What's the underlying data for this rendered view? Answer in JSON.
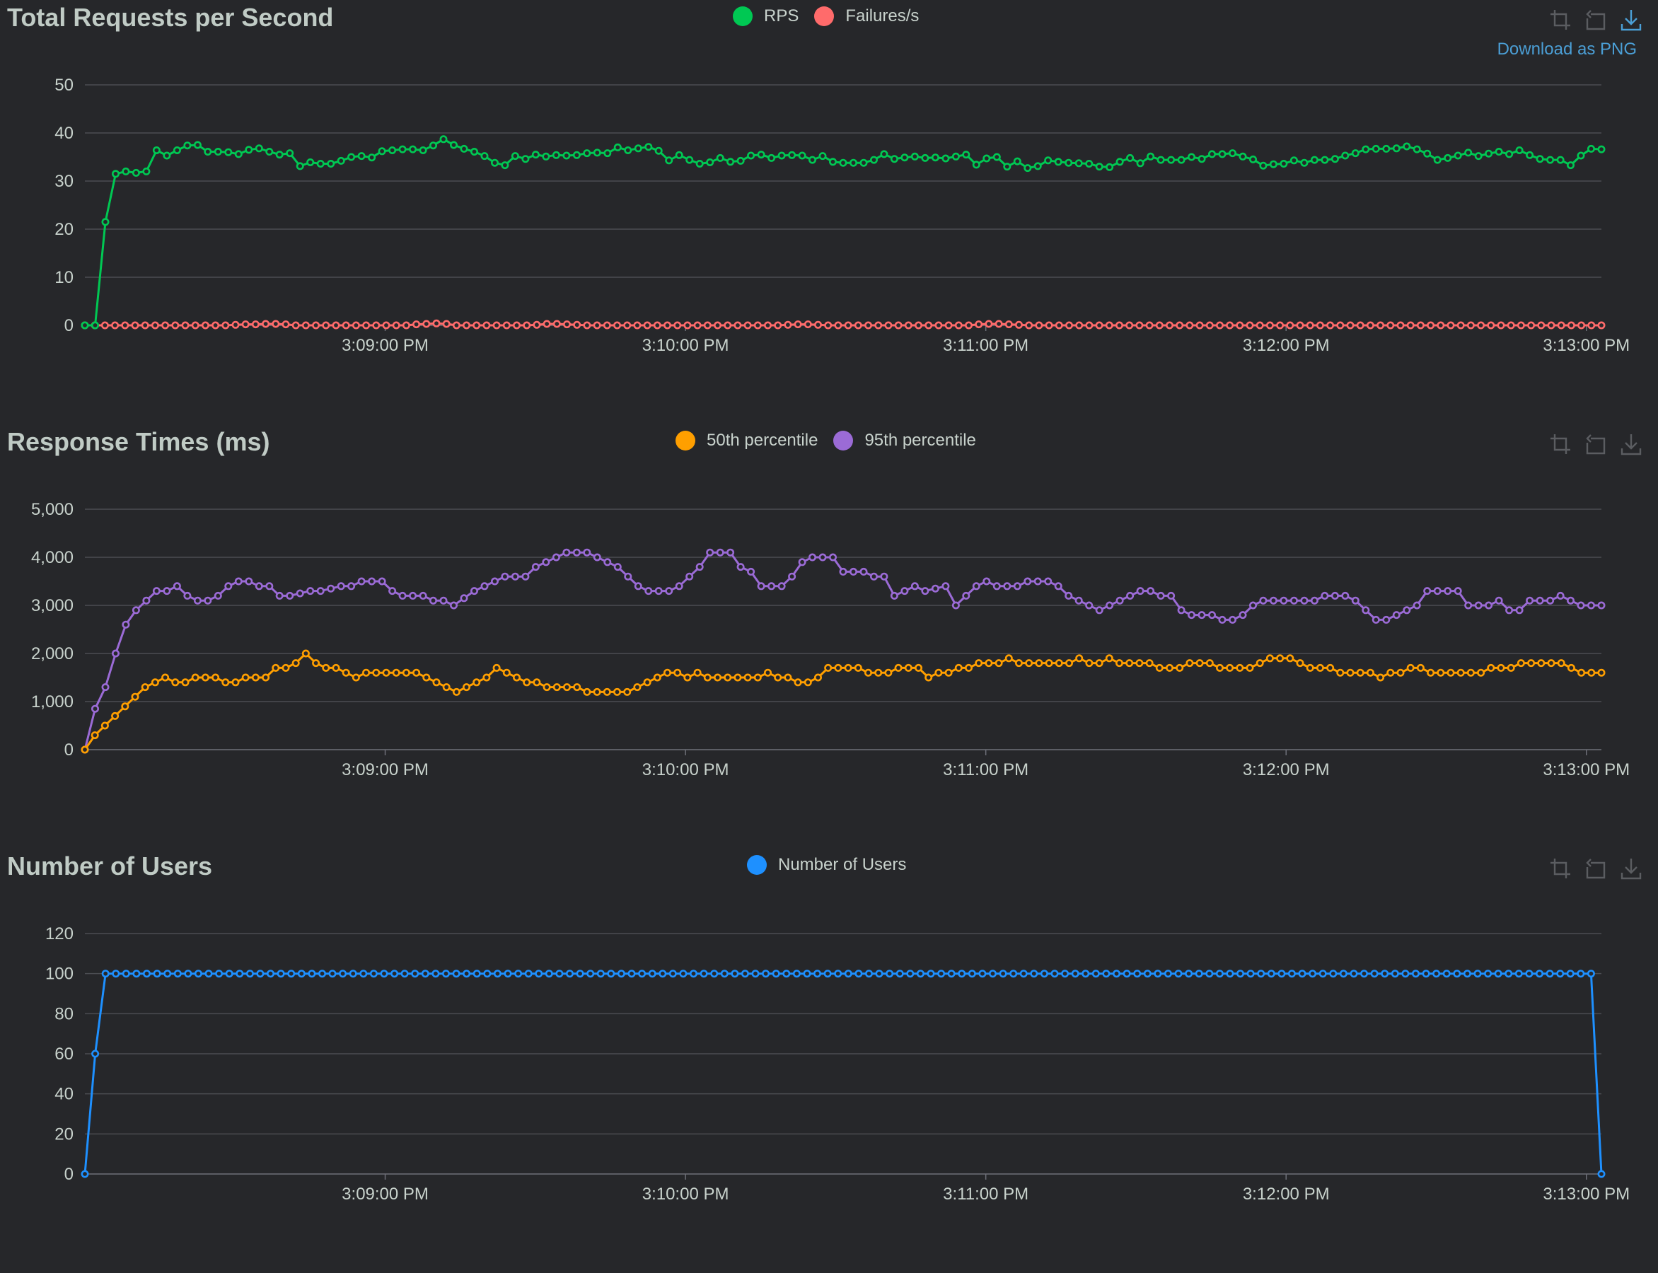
{
  "toolbox": {
    "zoom_icon": "zoom-select-icon",
    "restore_icon": "restore-icon",
    "download_icon": "download-icon",
    "download_tooltip": "Download as PNG"
  },
  "chart_data": [
    {
      "type": "line",
      "title": "Total Requests per Second",
      "x_type": "time",
      "x_ticks": [
        "3:09:00 PM",
        "3:10:00 PM",
        "3:11:00 PM",
        "3:12:00 PM",
        "3:13:00 PM"
      ],
      "x_range": [
        "3:08:00 PM",
        "3:13:03 PM"
      ],
      "y_ticks": [
        "0",
        "10",
        "20",
        "30",
        "40",
        "50"
      ],
      "ylim": [
        0,
        50
      ],
      "grid": true,
      "legend_position": "top-center",
      "series": [
        {
          "name": "RPS",
          "color": "#00c853",
          "values": [
            0,
            0,
            21.5,
            31.5,
            32,
            31.7,
            32,
            36.4,
            35.3,
            36.4,
            37.4,
            37.5,
            36.1,
            36.1,
            36,
            35.6,
            36.5,
            36.8,
            36.1,
            35.5,
            35.8,
            33.1,
            33.9,
            33.6,
            33.6,
            34.2,
            35,
            35.2,
            34.9,
            36.2,
            36.4,
            36.6,
            36.6,
            36.4,
            37.4,
            38.7,
            37.5,
            36.7,
            36.1,
            35.2,
            33.8,
            33.3,
            35.2,
            34.6,
            35.5,
            35.1,
            35.4,
            35.3,
            35.4,
            35.8,
            35.9,
            35.8,
            37,
            36.4,
            36.8,
            37.1,
            36.3,
            34.3,
            35.4,
            34.4,
            33.6,
            33.9,
            34.8,
            34,
            34.2,
            35.3,
            35.5,
            34.8,
            35.3,
            35.4,
            35.3,
            34.4,
            35.2,
            34,
            33.8,
            33.8,
            33.8,
            34.4,
            35.6,
            34.6,
            34.9,
            35.1,
            34.8,
            34.9,
            34.7,
            35.1,
            35.5,
            33.4,
            34.7,
            35,
            33,
            34.1,
            32.7,
            33.1,
            34.3,
            34,
            33.8,
            33.7,
            33.6,
            33,
            32.9,
            34,
            34.8,
            33.7,
            35.1,
            34.4,
            34.4,
            34.4,
            35,
            34.6,
            35.6,
            35.6,
            35.8,
            35.1,
            34.5,
            33.2,
            33.5,
            33.6,
            34.3,
            33.8,
            34.4,
            34.4,
            34.6,
            35.3,
            35.8,
            36.6,
            36.7,
            36.7,
            36.8,
            37.2,
            36.6,
            35.7,
            34.4,
            34.8,
            35.3,
            35.9,
            35.2,
            35.7,
            36.1,
            35.6,
            36.4,
            35.4,
            34.6,
            34.4,
            34.4,
            33.3,
            35.3,
            36.7,
            36.6
          ]
        },
        {
          "name": "Failures/s",
          "color": "#ff6b6b",
          "values": [
            0,
            0,
            0,
            0,
            0,
            0,
            0,
            0,
            0,
            0,
            0,
            0,
            0,
            0,
            0,
            0.1,
            0.2,
            0.2,
            0.3,
            0.3,
            0.2,
            0,
            0,
            0,
            0,
            0,
            0,
            0,
            0,
            0,
            0,
            0,
            0,
            0.2,
            0.3,
            0.4,
            0.3,
            0,
            0,
            0,
            0,
            0,
            0,
            0,
            0,
            0.1,
            0.3,
            0.3,
            0.2,
            0.1,
            0,
            0,
            0,
            0,
            0,
            0,
            0,
            0,
            0,
            0,
            0,
            0,
            0,
            0,
            0,
            0,
            0,
            0,
            0,
            0,
            0.1,
            0.2,
            0.2,
            0.1,
            0,
            0,
            0,
            0,
            0,
            0,
            0,
            0,
            0,
            0,
            0,
            0,
            0,
            0,
            0,
            0.2,
            0.3,
            0.3,
            0.2,
            0.1,
            0,
            0,
            0,
            0,
            0,
            0,
            0,
            0,
            0,
            0,
            0,
            0,
            0,
            0,
            0,
            0,
            0,
            0,
            0,
            0,
            0,
            0,
            0,
            0,
            0,
            0,
            0,
            0,
            0,
            0,
            0,
            0,
            0,
            0,
            0,
            0,
            0,
            0,
            0,
            0,
            0,
            0,
            0,
            0,
            0,
            0,
            0,
            0,
            0,
            0,
            0,
            0,
            0,
            0,
            0,
            0,
            0,
            0
          ]
        }
      ]
    },
    {
      "type": "line",
      "title": "Response Times (ms)",
      "x_type": "time",
      "x_ticks": [
        "3:09:00 PM",
        "3:10:00 PM",
        "3:11:00 PM",
        "3:12:00 PM",
        "3:13:00 PM"
      ],
      "x_range": [
        "3:08:00 PM",
        "3:13:03 PM"
      ],
      "y_ticks": [
        "0",
        "1,000",
        "2,000",
        "3,000",
        "4,000",
        "5,000"
      ],
      "ylim": [
        0,
        5000
      ],
      "grid": true,
      "legend_position": "top-center",
      "series": [
        {
          "name": "50th percentile",
          "color": "#ff9f00",
          "values": [
            0,
            300,
            500,
            700,
            900,
            1100,
            1300,
            1400,
            1500,
            1400,
            1400,
            1500,
            1500,
            1500,
            1400,
            1400,
            1500,
            1500,
            1500,
            1700,
            1700,
            1800,
            2000,
            1800,
            1700,
            1700,
            1600,
            1500,
            1600,
            1600,
            1600,
            1600,
            1600,
            1600,
            1500,
            1400,
            1300,
            1200,
            1300,
            1400,
            1500,
            1700,
            1600,
            1500,
            1400,
            1400,
            1300,
            1300,
            1300,
            1300,
            1200,
            1200,
            1200,
            1200,
            1200,
            1300,
            1400,
            1500,
            1600,
            1600,
            1500,
            1600,
            1500,
            1500,
            1500,
            1500,
            1500,
            1500,
            1600,
            1500,
            1500,
            1400,
            1400,
            1500,
            1700,
            1700,
            1700,
            1700,
            1600,
            1600,
            1600,
            1700,
            1700,
            1700,
            1500,
            1600,
            1600,
            1700,
            1700,
            1800,
            1800,
            1800,
            1900,
            1800,
            1800,
            1800,
            1800,
            1800,
            1800,
            1900,
            1800,
            1800,
            1900,
            1800,
            1800,
            1800,
            1800,
            1700,
            1700,
            1700,
            1800,
            1800,
            1800,
            1700,
            1700,
            1700,
            1700,
            1800,
            1900,
            1900,
            1900,
            1800,
            1700,
            1700,
            1700,
            1600,
            1600,
            1600,
            1600,
            1500,
            1600,
            1600,
            1700,
            1700,
            1600,
            1600,
            1600,
            1600,
            1600,
            1600,
            1700,
            1700,
            1700,
            1800,
            1800,
            1800,
            1800,
            1800,
            1700,
            1600,
            1600,
            1600
          ]
        },
        {
          "name": "95th percentile",
          "color": "#9b6bd6",
          "values": [
            0,
            850,
            1300,
            2000,
            2600,
            2900,
            3100,
            3300,
            3300,
            3400,
            3200,
            3100,
            3100,
            3200,
            3400,
            3500,
            3500,
            3400,
            3400,
            3200,
            3200,
            3250,
            3300,
            3300,
            3350,
            3400,
            3400,
            3500,
            3500,
            3500,
            3300,
            3200,
            3200,
            3200,
            3100,
            3100,
            3000,
            3150,
            3300,
            3400,
            3500,
            3600,
            3600,
            3600,
            3800,
            3900,
            4000,
            4100,
            4100,
            4100,
            4000,
            3900,
            3800,
            3600,
            3400,
            3300,
            3300,
            3300,
            3400,
            3600,
            3800,
            4100,
            4100,
            4100,
            3800,
            3700,
            3400,
            3400,
            3400,
            3600,
            3900,
            4000,
            4000,
            4000,
            3700,
            3700,
            3700,
            3600,
            3600,
            3200,
            3300,
            3400,
            3300,
            3350,
            3400,
            3000,
            3200,
            3400,
            3500,
            3400,
            3400,
            3400,
            3500,
            3500,
            3500,
            3400,
            3200,
            3100,
            3000,
            2900,
            3000,
            3100,
            3200,
            3300,
            3300,
            3200,
            3200,
            2900,
            2800,
            2800,
            2800,
            2700,
            2700,
            2800,
            3000,
            3100,
            3100,
            3100,
            3100,
            3100,
            3100,
            3200,
            3200,
            3200,
            3100,
            2900,
            2700,
            2700,
            2800,
            2900,
            3000,
            3300,
            3300,
            3300,
            3300,
            3000,
            3000,
            3000,
            3100,
            2900,
            2900,
            3100,
            3100,
            3100,
            3200,
            3100,
            3000,
            3000,
            3000
          ]
        }
      ]
    },
    {
      "type": "line",
      "title": "Number of Users",
      "x_type": "time",
      "x_ticks": [
        "3:09:00 PM",
        "3:10:00 PM",
        "3:11:00 PM",
        "3:12:00 PM",
        "3:13:00 PM"
      ],
      "x_range": [
        "3:08:00 PM",
        "3:13:03 PM"
      ],
      "y_ticks": [
        "0",
        "20",
        "40",
        "60",
        "80",
        "100",
        "120"
      ],
      "ylim": [
        0,
        120
      ],
      "grid": true,
      "legend_position": "top-center",
      "series": [
        {
          "name": "Number of Users",
          "color": "#1e90ff",
          "values": [
            0,
            60,
            100,
            100,
            100,
            100,
            100,
            100,
            100,
            100,
            100,
            100,
            100,
            100,
            100,
            100,
            100,
            100,
            100,
            100,
            100,
            100,
            100,
            100,
            100,
            100,
            100,
            100,
            100,
            100,
            100,
            100,
            100,
            100,
            100,
            100,
            100,
            100,
            100,
            100,
            100,
            100,
            100,
            100,
            100,
            100,
            100,
            100,
            100,
            100,
            100,
            100,
            100,
            100,
            100,
            100,
            100,
            100,
            100,
            100,
            100,
            100,
            100,
            100,
            100,
            100,
            100,
            100,
            100,
            100,
            100,
            100,
            100,
            100,
            100,
            100,
            100,
            100,
            100,
            100,
            100,
            100,
            100,
            100,
            100,
            100,
            100,
            100,
            100,
            100,
            100,
            100,
            100,
            100,
            100,
            100,
            100,
            100,
            100,
            100,
            100,
            100,
            100,
            100,
            100,
            100,
            100,
            100,
            100,
            100,
            100,
            100,
            100,
            100,
            100,
            100,
            100,
            100,
            100,
            100,
            100,
            100,
            100,
            100,
            100,
            100,
            100,
            100,
            100,
            100,
            100,
            100,
            100,
            100,
            100,
            100,
            100,
            100,
            100,
            100,
            100,
            100,
            100,
            100,
            100,
            100,
            100,
            0
          ]
        }
      ]
    }
  ]
}
